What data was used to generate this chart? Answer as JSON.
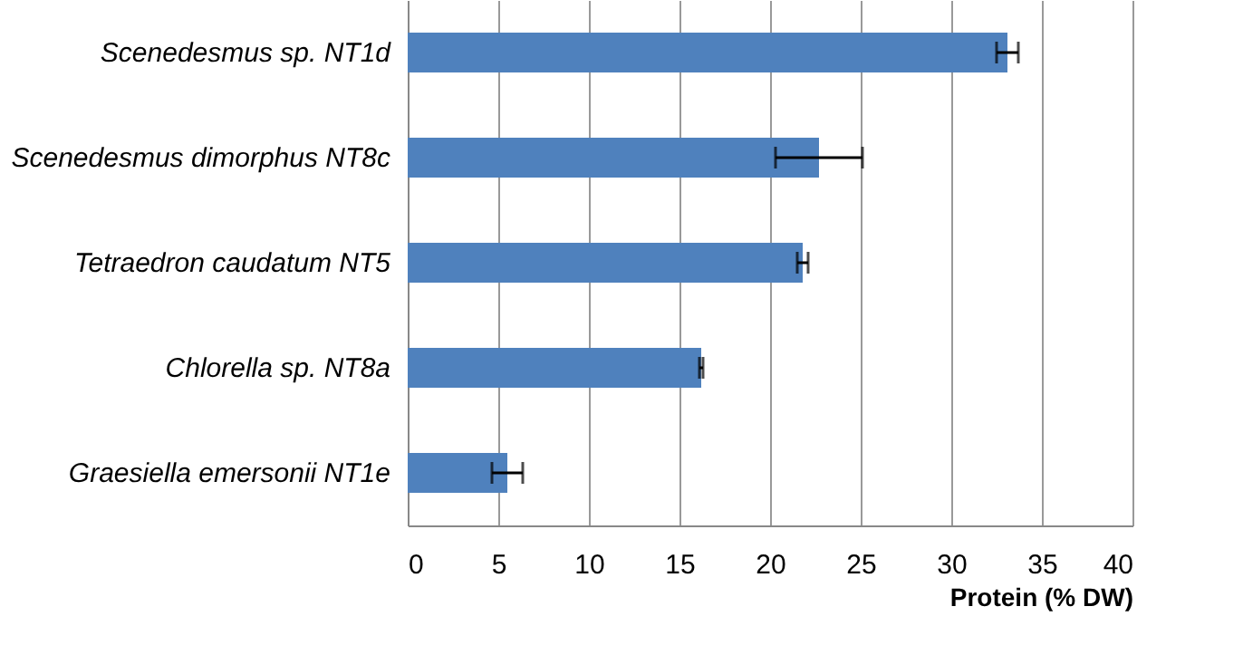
{
  "chart_data": {
    "type": "bar",
    "orientation": "horizontal",
    "xlabel": "Protein (% DW)",
    "categories": [
      "Scenedesmus sp. NT1d",
      "Scenedesmus dimorphus NT8c",
      "Tetraedron caudatum NT5",
      "Chlorella sp. NT8a",
      "Graesiella emersonii NT1e"
    ],
    "values": [
      33.1,
      22.7,
      21.8,
      16.2,
      5.5
    ],
    "errors": [
      0.6,
      2.4,
      0.3,
      0.1,
      0.85
    ],
    "color": "#4f81bd",
    "xlim": [
      0,
      40
    ],
    "xticks": [
      0,
      5,
      10,
      15,
      20,
      25,
      30,
      35,
      40
    ],
    "grid": "x"
  }
}
